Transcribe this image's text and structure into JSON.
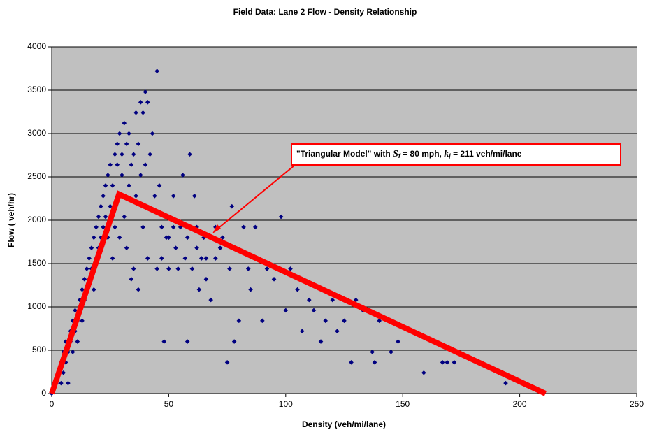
{
  "chart_data": {
    "type": "scatter",
    "title": "Field Data: Lane 2 Flow - Density Relationship",
    "xlabel": "Density (veh/mi/lane)",
    "ylabel": "Flow ( veh/hr)",
    "xlim": [
      0,
      250
    ],
    "xticks": [
      0,
      50,
      100,
      150,
      200,
      250
    ],
    "ylim": [
      0,
      4000
    ],
    "yticks": [
      0,
      500,
      1000,
      1500,
      2000,
      2500,
      3000,
      3500,
      4000
    ],
    "grid": true,
    "background": "#c0c0c0",
    "points": {
      "color": "#000080",
      "x": [
        0,
        1,
        2,
        3,
        4,
        4,
        5,
        5,
        6,
        6,
        7,
        7,
        8,
        8,
        9,
        9,
        10,
        10,
        11,
        11,
        12,
        12,
        13,
        13,
        14,
        14,
        15,
        15,
        16,
        16,
        17,
        17,
        18,
        18,
        19,
        19,
        20,
        20,
        21,
        21,
        22,
        22,
        23,
        23,
        24,
        24,
        25,
        25,
        26,
        26,
        27,
        27,
        28,
        28,
        29,
        29,
        30,
        30,
        31,
        31,
        32,
        32,
        33,
        33,
        34,
        34,
        35,
        35,
        36,
        36,
        37,
        37,
        38,
        38,
        39,
        39,
        40,
        40,
        41,
        41,
        42,
        43,
        44,
        45,
        46,
        47,
        48,
        49,
        50,
        52,
        53,
        55,
        56,
        57,
        58,
        59,
        60,
        61,
        62,
        63,
        64,
        65,
        66,
        68,
        70,
        72,
        75,
        77,
        78,
        80,
        82,
        84,
        85,
        87,
        90,
        92,
        95,
        98,
        100,
        102,
        105,
        107,
        110,
        112,
        115,
        117,
        120,
        122,
        125,
        128,
        130,
        133,
        137,
        138,
        140,
        145,
        148,
        159,
        167,
        169,
        172,
        191,
        194,
        45,
        47,
        50,
        52,
        54,
        58,
        62,
        66,
        70,
        73,
        76
      ],
      "y": [
        0,
        120,
        120,
        240,
        120,
        360,
        240,
        480,
        360,
        600,
        480,
        120,
        720,
        600,
        840,
        480,
        720,
        960,
        840,
        600,
        1080,
        960,
        1200,
        840,
        1080,
        1320,
        1440,
        1200,
        1320,
        1560,
        1680,
        1440,
        1800,
        1200,
        1560,
        1920,
        2040,
        1680,
        1800,
        2160,
        2280,
        1920,
        2400,
        2040,
        1800,
        2520,
        2640,
        2160,
        2400,
        1560,
        2760,
        1920,
        2880,
        2640,
        3000,
        1800,
        2520,
        2760,
        3120,
        2040,
        2880,
        1680,
        3000,
        2400,
        2640,
        1320,
        2760,
        1440,
        3240,
        2280,
        2880,
        1200,
        3360,
        2520,
        3240,
        1920,
        3480,
        2640,
        3360,
        1560,
        2760,
        3000,
        2280,
        3720,
        2400,
        1920,
        600,
        1800,
        1440,
        2280,
        1680,
        1920,
        2520,
        1560,
        600,
        2760,
        1440,
        2280,
        1920,
        1200,
        1560,
        1800,
        1320,
        1080,
        1560,
        1680,
        360,
        2160,
        600,
        840,
        1920,
        1440,
        1200,
        1920,
        840,
        1440,
        1320,
        2040,
        960,
        1440,
        1200,
        720,
        1080,
        960,
        600,
        840,
        1080,
        720,
        840,
        360,
        1080,
        960,
        480,
        360,
        840,
        480,
        600,
        240,
        360,
        360,
        360,
        240,
        120,
        1440,
        1560,
        1800,
        1920,
        1440,
        1800,
        1680,
        1560,
        1920,
        1800,
        1440
      ]
    },
    "model": {
      "color": "#ff0000",
      "x": [
        0,
        28.75,
        211
      ],
      "y": [
        0,
        2300,
        0
      ]
    },
    "annotation": [
      "\"Triangular Model\" with ",
      "S",
      "f",
      " = 80 mph, ",
      "k",
      "j",
      " = 211 veh/mi/lane"
    ]
  }
}
